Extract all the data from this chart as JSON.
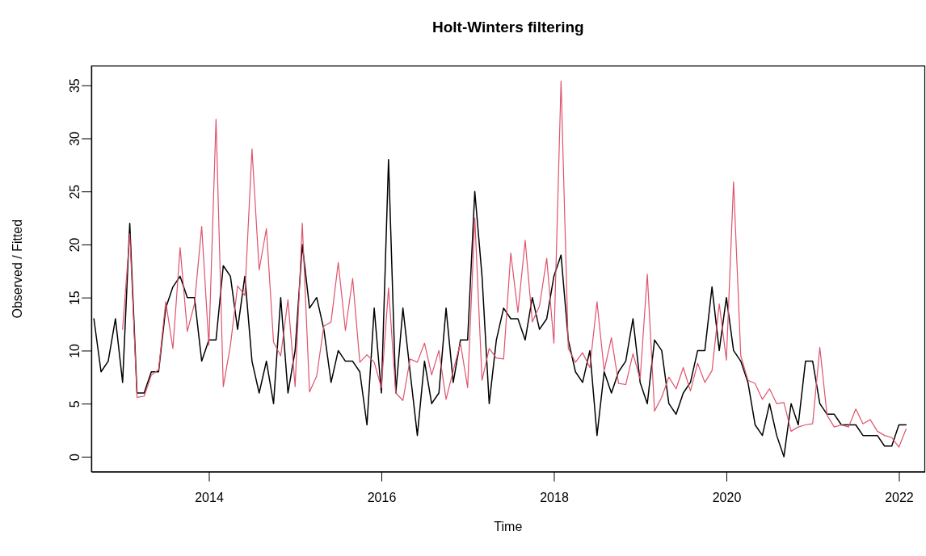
{
  "chart_data": {
    "type": "line",
    "title": "Holt-Winters filtering",
    "xlabel": "Time",
    "ylabel": "Observed / Fitted",
    "xlim": [
      2012.639,
      2022.3
    ],
    "xticks": [
      2014,
      2016,
      2018,
      2020,
      2022
    ],
    "ylim": [
      -1.42,
      36.82
    ],
    "yticks": [
      0,
      5,
      10,
      15,
      20,
      25,
      30,
      35
    ],
    "series": [
      {
        "color": "#000000",
        "x": [
          2012.667,
          2012.75,
          2012.833,
          2012.917,
          2013,
          2013.083,
          2013.167,
          2013.25,
          2013.333,
          2013.417,
          2013.5,
          2013.583,
          2013.667,
          2013.75,
          2013.833,
          2013.917,
          2014,
          2014.083,
          2014.167,
          2014.25,
          2014.333,
          2014.417,
          2014.5,
          2014.583,
          2014.667,
          2014.75,
          2014.833,
          2014.917,
          2015,
          2015.083,
          2015.167,
          2015.25,
          2015.333,
          2015.417,
          2015.5,
          2015.583,
          2015.667,
          2015.75,
          2015.833,
          2015.917,
          2016,
          2016.083,
          2016.167,
          2016.25,
          2016.333,
          2016.417,
          2016.5,
          2016.583,
          2016.667,
          2016.75,
          2016.833,
          2016.917,
          2017,
          2017.083,
          2017.167,
          2017.25,
          2017.333,
          2017.417,
          2017.5,
          2017.583,
          2017.667,
          2017.75,
          2017.833,
          2017.917,
          2018,
          2018.083,
          2018.167,
          2018.25,
          2018.333,
          2018.417,
          2018.5,
          2018.583,
          2018.667,
          2018.75,
          2018.833,
          2018.917,
          2019,
          2019.083,
          2019.167,
          2019.25,
          2019.333,
          2019.417,
          2019.5,
          2019.583,
          2019.667,
          2019.75,
          2019.833,
          2019.917,
          2020,
          2020.083,
          2020.167,
          2020.25,
          2020.333,
          2020.417,
          2020.5,
          2020.583,
          2020.667,
          2020.75,
          2020.833,
          2020.917,
          2021,
          2021.083,
          2021.167,
          2021.25,
          2021.333,
          2021.417,
          2021.5,
          2021.583,
          2021.667,
          2021.75,
          2021.833,
          2021.917,
          2022,
          2022.083
        ],
        "values": [
          13,
          8,
          9,
          13,
          7,
          22,
          6,
          6,
          8,
          8,
          14,
          16,
          17,
          15,
          15,
          9,
          11,
          11,
          18,
          17,
          12,
          17,
          9,
          6,
          9,
          5,
          15,
          6,
          10,
          20,
          14,
          15,
          12,
          7,
          10,
          9,
          9,
          8,
          3,
          14,
          6,
          28,
          6,
          14,
          8,
          2,
          9,
          5,
          6,
          14,
          7,
          11,
          11,
          25,
          17,
          5,
          11,
          14,
          13,
          13,
          11,
          15,
          12,
          13,
          17,
          19,
          11,
          8,
          7,
          10,
          2,
          8,
          6,
          8,
          9,
          13,
          7,
          5,
          11,
          10,
          5,
          4,
          6,
          7,
          10,
          10,
          16,
          10,
          15,
          10,
          9,
          7,
          3,
          2,
          5,
          2,
          0,
          5,
          3,
          9,
          9,
          5,
          4,
          4,
          3,
          3,
          3,
          2,
          2,
          2,
          1,
          1,
          3,
          3
        ]
      },
      {
        "color": "#df536b",
        "x": [
          2013,
          2013.083,
          2013.167,
          2013.25,
          2013.333,
          2013.417,
          2013.5,
          2013.583,
          2013.667,
          2013.75,
          2013.833,
          2013.917,
          2014,
          2014.083,
          2014.167,
          2014.25,
          2014.333,
          2014.417,
          2014.5,
          2014.583,
          2014.667,
          2014.75,
          2014.833,
          2014.917,
          2015,
          2015.083,
          2015.167,
          2015.25,
          2015.333,
          2015.417,
          2015.5,
          2015.583,
          2015.667,
          2015.75,
          2015.833,
          2015.917,
          2016,
          2016.083,
          2016.167,
          2016.25,
          2016.333,
          2016.417,
          2016.5,
          2016.583,
          2016.667,
          2016.75,
          2016.833,
          2016.917,
          2017,
          2017.083,
          2017.167,
          2017.25,
          2017.333,
          2017.417,
          2017.5,
          2017.583,
          2017.667,
          2017.75,
          2017.833,
          2017.917,
          2018,
          2018.083,
          2018.167,
          2018.25,
          2018.333,
          2018.417,
          2018.5,
          2018.583,
          2018.667,
          2018.75,
          2018.833,
          2018.917,
          2019,
          2019.083,
          2019.167,
          2019.25,
          2019.333,
          2019.417,
          2019.5,
          2019.583,
          2019.667,
          2019.75,
          2019.833,
          2019.917,
          2020,
          2020.083,
          2020.167,
          2020.25,
          2020.333,
          2020.417,
          2020.5,
          2020.583,
          2020.667,
          2020.75,
          2020.833,
          2020.917,
          2021,
          2021.083,
          2021.167,
          2021.25,
          2021.333,
          2021.417,
          2021.5,
          2021.583,
          2021.667,
          2021.75,
          2021.833,
          2021.917,
          2022,
          2022.083
        ],
        "values": [
          12,
          21,
          5.6,
          5.7,
          7.7,
          8.2,
          14.6,
          10.2,
          19.7,
          11.8,
          14.4,
          21.7,
          10.5,
          31.8,
          6.6,
          10.5,
          16.1,
          15.2,
          29,
          17.6,
          21.5,
          10.8,
          9.5,
          14.8,
          6.6,
          22,
          6.1,
          7.6,
          12.3,
          12.7,
          18.3,
          11.9,
          16.8,
          8.9,
          9.6,
          8.9,
          6.5,
          15.9,
          6,
          5.3,
          9.2,
          8.9,
          10.7,
          7.7,
          10,
          5.4,
          8.1,
          10.7,
          6.5,
          22.5,
          7.2,
          10.2,
          9.3,
          9.2,
          19.2,
          13.6,
          20.4,
          12.7,
          14.2,
          18.7,
          10.7,
          35.4,
          10.2,
          8.9,
          9.8,
          8.4,
          14.6,
          8.1,
          11.2,
          6.9,
          6.8,
          9.7,
          7.3,
          17.2,
          4.3,
          5.6,
          7.5,
          6.4,
          8.4,
          6.2,
          8.8,
          7,
          8.1,
          14.4,
          9.1,
          25.9,
          9.5,
          7.2,
          6.9,
          5.4,
          6.4,
          5,
          5.1,
          2.4,
          2.8,
          3,
          3.1,
          10.3,
          3.9,
          2.8,
          3,
          2.8,
          4.5,
          3.1,
          3.5,
          2.4,
          2,
          1.8,
          0.9,
          2.6
        ]
      }
    ]
  }
}
